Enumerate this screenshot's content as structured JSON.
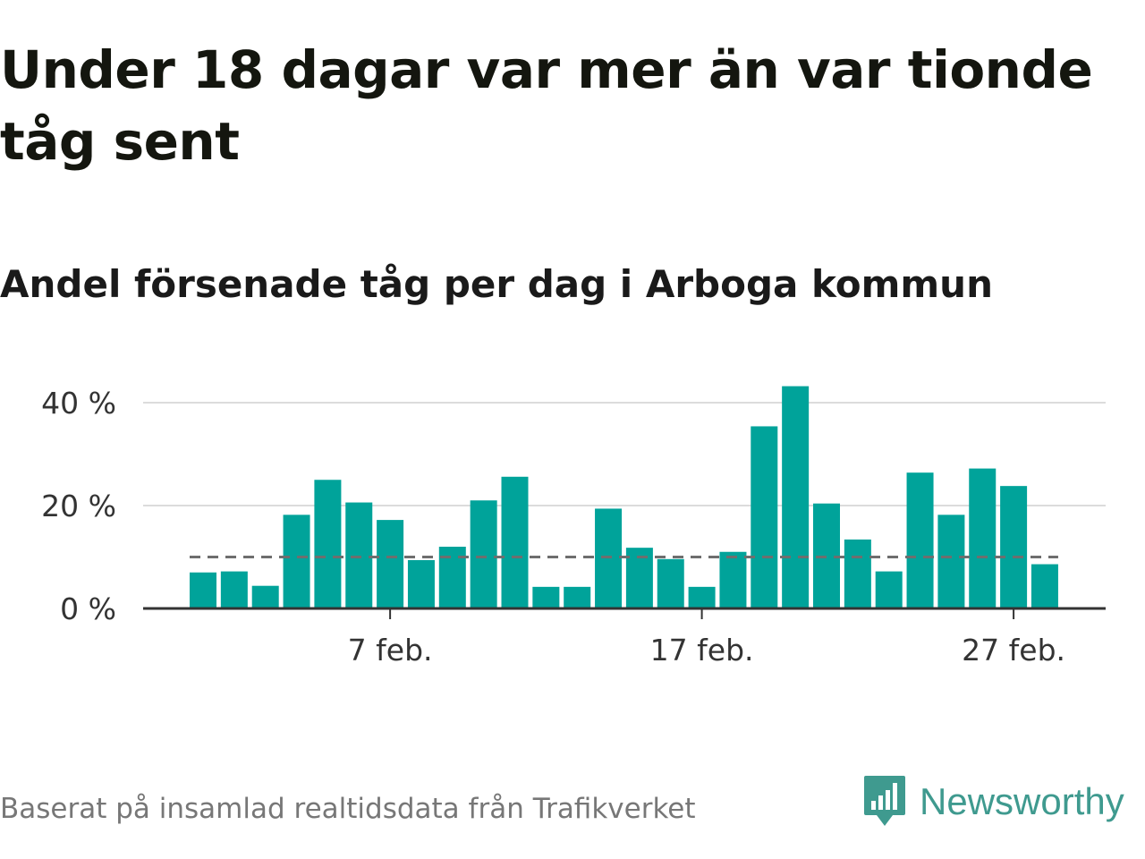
{
  "title": "Under 18 dagar var mer än var tionde tåg sent",
  "subtitle": "Andel försenade tåg per dag i Arboga kommun",
  "footer": "Baserat på insamlad realtidsdata från Trafikverket",
  "brand": {
    "name": "Newsworthy",
    "icon": "newsworthy-logo-icon",
    "color": "#3f9a8f"
  },
  "chart_data": {
    "type": "bar",
    "x": [
      "2025-02-01",
      "2025-02-02",
      "2025-02-03",
      "2025-02-04",
      "2025-02-05",
      "2025-02-06",
      "2025-02-07",
      "2025-02-08",
      "2025-02-09",
      "2025-02-10",
      "2025-02-11",
      "2025-02-12",
      "2025-02-13",
      "2025-02-14",
      "2025-02-15",
      "2025-02-16",
      "2025-02-17",
      "2025-02-18",
      "2025-02-19",
      "2025-02-20",
      "2025-02-21",
      "2025-02-22",
      "2025-02-23",
      "2025-02-24",
      "2025-02-25",
      "2025-02-26",
      "2025-02-27",
      "2025-02-28"
    ],
    "values": [
      7,
      7.2,
      4.4,
      18.2,
      25,
      20.6,
      17.2,
      9.4,
      12,
      21,
      25.6,
      4.2,
      4.2,
      19.4,
      11.8,
      9.6,
      4.2,
      11,
      35.4,
      43.2,
      20.4,
      13.4,
      7.2,
      26.4,
      18.2,
      27.2,
      23.8,
      8.6
    ],
    "reference_line": {
      "value": 10,
      "style": "dashed",
      "color": "#6e6e6e"
    },
    "bar_color": "#00a39a",
    "ylim": [
      0,
      45
    ],
    "yticks": [
      0,
      20,
      40
    ],
    "ytick_labels": [
      "0 %",
      "20 %",
      "40 %"
    ],
    "xtick_labels": [
      {
        "x": "2025-02-07",
        "label": "7 feb."
      },
      {
        "x": "2025-02-17",
        "label": "17 feb."
      },
      {
        "x": "2025-02-27",
        "label": "27 feb."
      }
    ],
    "grid": true
  }
}
